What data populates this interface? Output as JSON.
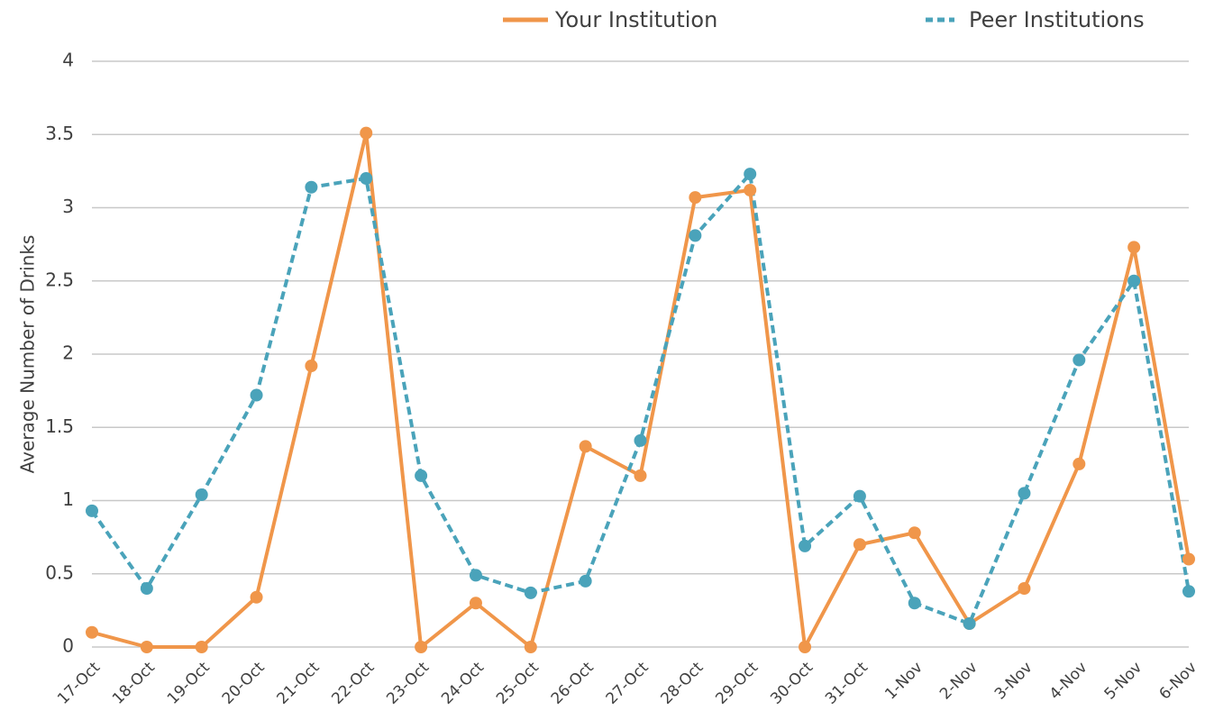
{
  "chart_data": {
    "type": "line",
    "y_label": "Average Number of Drinks",
    "categories": [
      "17-Oct",
      "18-Oct",
      "19-Oct",
      "20-Oct",
      "21-Oct",
      "22-Oct",
      "23-Oct",
      "24-Oct",
      "25-Oct",
      "26-Oct",
      "27-Oct",
      "28-Oct",
      "29-Oct",
      "30-Oct",
      "31-Oct",
      "1-Nov",
      "2-Nov",
      "3-Nov",
      "4-Nov",
      "5-Nov",
      "6-Nov"
    ],
    "series": [
      {
        "name": "Your Institution",
        "color": "#f0964a",
        "dash": false,
        "values": [
          0.1,
          0,
          0,
          0.34,
          1.92,
          3.51,
          0,
          0.3,
          0,
          1.37,
          1.17,
          3.07,
          3.12,
          0,
          0.7,
          0.78,
          0.16,
          0.4,
          1.25,
          2.73,
          0.6
        ]
      },
      {
        "name": "Peer Institutions",
        "color": "#4aa3ba",
        "dash": true,
        "values": [
          0.93,
          0.4,
          1.04,
          1.72,
          3.14,
          3.2,
          1.17,
          0.49,
          0.37,
          0.45,
          1.41,
          2.81,
          3.23,
          0.69,
          1.03,
          0.3,
          0.16,
          1.05,
          1.96,
          2.5,
          0.38
        ]
      }
    ],
    "ylim": [
      0,
      4
    ],
    "yticks": [
      0,
      0.5,
      1,
      1.5,
      2,
      2.5,
      3,
      3.5,
      4
    ],
    "grid": true
  }
}
